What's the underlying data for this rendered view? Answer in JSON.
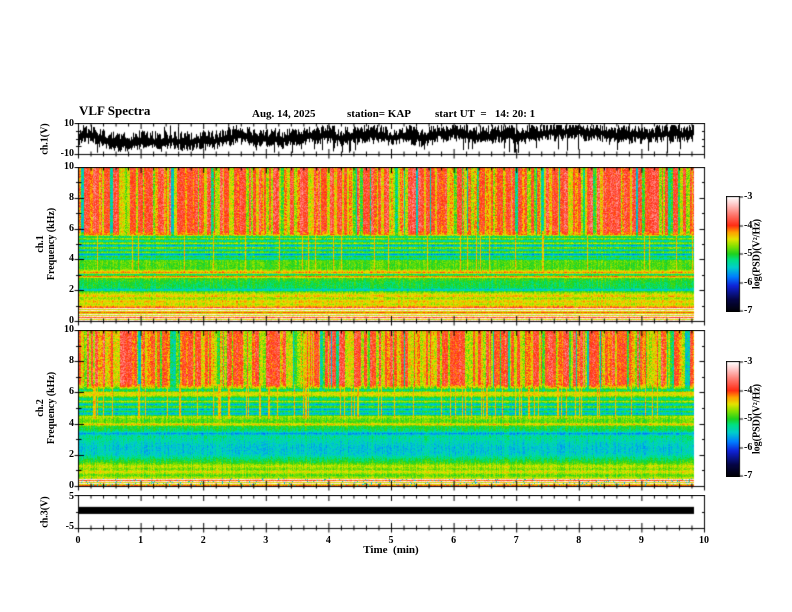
{
  "header": {
    "title": "VLF Spectra",
    "date": "Aug. 14, 2025",
    "station": "station= KAP",
    "start_ut": "start UT  =   14: 20: 1"
  },
  "axes": {
    "time": {
      "label": "Time  (min)",
      "ticks": [
        0,
        1,
        2,
        3,
        4,
        5,
        6,
        7,
        8,
        9,
        10
      ],
      "range_min": [
        0,
        10
      ],
      "minor_step_min": 0.2
    },
    "ch1_volts": {
      "label": "ch.1(V)",
      "tick_labels": [
        "10",
        "-10"
      ],
      "range_v": [
        -10,
        10
      ]
    },
    "spec1": {
      "label_channel": "ch.1",
      "label_axis": "Frequency  (kHz)",
      "ticks": [
        0,
        2,
        4,
        6,
        8,
        10
      ],
      "range_khz": [
        0,
        10
      ]
    },
    "spec2": {
      "label_channel": "ch.2",
      "label_axis": "Frequency  (kHz)",
      "ticks": [
        0,
        2,
        4,
        6,
        8,
        10
      ],
      "range_khz": [
        0,
        10
      ]
    },
    "ch3_volts": {
      "label": "ch.3(V)",
      "tick_labels": [
        "5",
        "-5"
      ],
      "range_v": [
        -5,
        5
      ]
    }
  },
  "colorbar": {
    "label": "log(PSD)(V²/Hz)",
    "ticks": [
      -3,
      -4,
      -5,
      -6,
      -7
    ],
    "range": [
      -3,
      -7
    ],
    "colormap": [
      [
        0,
        "#000008"
      ],
      [
        0.1,
        "#050546"
      ],
      [
        0.22,
        "#0f23d7"
      ],
      [
        0.3,
        "#007dff"
      ],
      [
        0.38,
        "#00cdcd"
      ],
      [
        0.45,
        "#00e182"
      ],
      [
        0.5,
        "#1ed21e"
      ],
      [
        0.57,
        "#87e100"
      ],
      [
        0.63,
        "#e4e400"
      ],
      [
        0.69,
        "#ffa000"
      ],
      [
        0.75,
        "#ff2d14"
      ],
      [
        0.84,
        "#ff7369"
      ],
      [
        0.93,
        "#ffc3c3"
      ],
      [
        1,
        "#ffffff"
      ]
    ]
  },
  "chart_data": [
    {
      "type": "line",
      "panel": "ch.1(V) time series",
      "x_range_min": [
        0,
        9.83
      ],
      "y_range_v": [
        -10,
        10
      ],
      "summary": "dense black noise waveform centered near +1 to +2 V with frequent downward spikes approaching -10 V and peaks near +10 V",
      "render": {
        "seed": 7,
        "baseline_frac": 0.44
      }
    },
    {
      "type": "heatmap",
      "panel": "ch.1 spectrogram",
      "x_range_min": [
        0,
        9.83
      ],
      "y_range_khz": [
        0,
        10
      ],
      "z_label": "log(PSD)(V²/Hz)",
      "z_range": [
        -7,
        -3
      ],
      "seed": 11,
      "pale_below_khz": 0.85,
      "speckle_bottom": false,
      "streaks": {
        "start_khz": 5.9,
        "palette": [
          [
            -3.85,
            0.5
          ],
          [
            -4.2,
            0.13
          ],
          [
            -4.55,
            0.25
          ],
          [
            -4.9,
            0.06
          ],
          [
            -5.35,
            0.06
          ]
        ],
        "spike_prob": 0.05,
        "spike_range_khz": [
          3.3,
          5.9
        ]
      },
      "profile_khz_logpsd": [
        [
          10,
          -3.95
        ],
        [
          6.3,
          -4.0
        ],
        [
          6.0,
          -4.1
        ],
        [
          5.8,
          -4.7
        ],
        [
          5.65,
          -4.35
        ],
        [
          5.5,
          -5.6
        ],
        [
          5.38,
          -4.6
        ],
        [
          5.22,
          -5.5
        ],
        [
          5.08,
          -4.55
        ],
        [
          4.92,
          -5.7
        ],
        [
          4.78,
          -4.6
        ],
        [
          4.62,
          -5.6
        ],
        [
          4.5,
          -4.65
        ],
        [
          4.35,
          -5.7
        ],
        [
          4.2,
          -4.9
        ],
        [
          4.08,
          -5.4
        ],
        [
          3.95,
          -4.85
        ],
        [
          3.4,
          -4.9
        ],
        [
          3.15,
          -4.15
        ],
        [
          3.02,
          -5.4
        ],
        [
          2.9,
          -4.1
        ],
        [
          2.78,
          -4.9
        ],
        [
          2.55,
          -5.05
        ],
        [
          2.15,
          -5.1
        ],
        [
          2.02,
          -5.6
        ],
        [
          1.92,
          -4.85
        ],
        [
          1.62,
          -4.3
        ],
        [
          1.5,
          -4.75
        ],
        [
          1.28,
          -4.35
        ],
        [
          1.08,
          -4.6
        ],
        [
          0.88,
          -4.1
        ]
      ],
      "features": [
        "6-10 kHz: intense red band (log PSD near -4) broken by vertical yellow-green and rare cyan streaks",
        "group of dark interference lines between 4.1 and 5.5 kHz",
        "strong red horizontal line pair near 2.9-3.1 kHz",
        "green band near -5 between 2 and 2.8 kHz with thin red lines at 1.3-1.6 kHz",
        "pale white-yellow horizontal stripes below 0.85 kHz"
      ]
    },
    {
      "type": "heatmap",
      "panel": "ch.2 spectrogram",
      "x_range_min": [
        0,
        9.83
      ],
      "y_range_khz": [
        0,
        10
      ],
      "z_label": "log(PSD)(V²/Hz)",
      "z_range": [
        -7,
        -3
      ],
      "seed": 23,
      "pale_below_khz": 0.5,
      "speckle_bottom": true,
      "streaks": {
        "start_khz": 6.6,
        "palette": [
          [
            -3.9,
            0.45
          ],
          [
            -4.25,
            0.15
          ],
          [
            -4.55,
            0.28
          ],
          [
            -4.9,
            0.06
          ],
          [
            -5.35,
            0.06
          ]
        ],
        "spike_prob": 0.1,
        "spike_range_khz": [
          4.3,
          6.6
        ]
      },
      "profile_khz_logpsd": [
        [
          10,
          -4.0
        ],
        [
          8.2,
          -4.05
        ],
        [
          7.2,
          -4.2
        ],
        [
          6.6,
          -4.3
        ],
        [
          6.18,
          -5.5
        ],
        [
          6.05,
          -4.5
        ],
        [
          5.85,
          -4.5
        ],
        [
          5.6,
          -5.4
        ],
        [
          5.45,
          -4.6
        ],
        [
          5.25,
          -5.6
        ],
        [
          5.1,
          -4.7
        ],
        [
          4.95,
          -5.7
        ],
        [
          4.8,
          -5.0
        ],
        [
          4.65,
          -5.7
        ],
        [
          4.5,
          -4.6
        ],
        [
          4.3,
          -4.8
        ],
        [
          4.12,
          -4.9
        ],
        [
          3.97,
          -4.35
        ],
        [
          3.85,
          -5.0
        ],
        [
          3.55,
          -5.15
        ],
        [
          3.38,
          -5.7
        ],
        [
          3.22,
          -5.25
        ],
        [
          2.95,
          -5.35
        ],
        [
          2.5,
          -5.5
        ],
        [
          2.05,
          -5.45
        ],
        [
          1.75,
          -5.15
        ],
        [
          1.5,
          -4.95
        ],
        [
          1.28,
          -4.55
        ],
        [
          1.08,
          -4.8
        ],
        [
          0.9,
          -4.45
        ],
        [
          0.7,
          -4.9
        ],
        [
          0.52,
          -4.6
        ]
      ],
      "features": [
        "7.5-10 kHz: red dominant with yellow-green streaks",
        "red vertical spikes reaching down through 4.3-6.6 kHz",
        "dark interference line group near 4.5-5.3 kHz",
        "cyan-green band near -5.4 between 2 and 3.5 kHz",
        "pale speckled stripes below 0.5 kHz"
      ]
    },
    {
      "type": "line",
      "panel": "ch.3(V) time series",
      "x_range_min": [
        0,
        9.83
      ],
      "y_range_v": [
        -5,
        5
      ],
      "bar_v": [
        -0.6,
        1.6
      ],
      "summary": "flat thick solid black bar near +0.5 V spanning the whole record"
    }
  ]
}
